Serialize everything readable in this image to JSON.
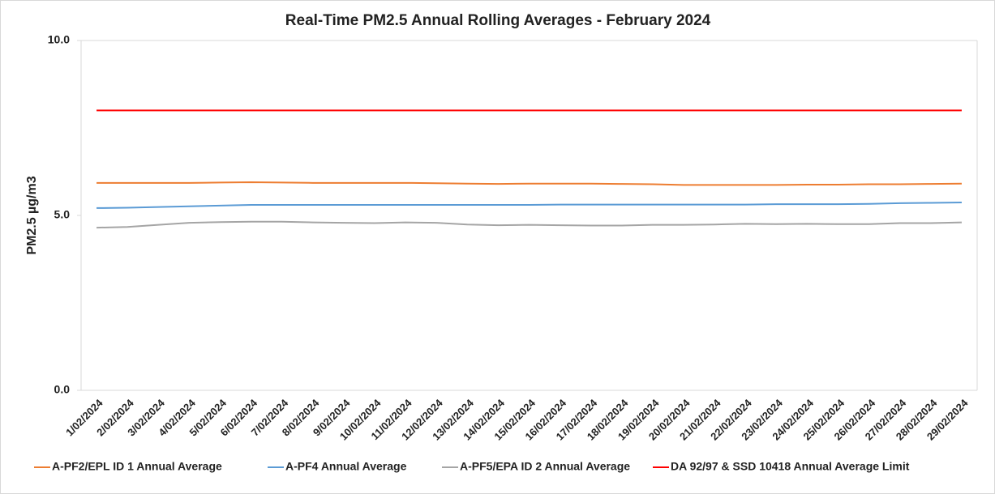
{
  "chart_data": {
    "type": "line",
    "title": "Real-Time PM2.5 Annual Rolling Averages - February 2024",
    "y_label": "PM2.5 µg/m3",
    "categories": [
      "1/02/2024",
      "2/02/2024",
      "3/02/2024",
      "4/02/2024",
      "5/02/2024",
      "6/02/2024",
      "7/02/2024",
      "8/02/2024",
      "9/02/2024",
      "10/02/2024",
      "11/02/2024",
      "12/02/2024",
      "13/02/2024",
      "14/02/2024",
      "15/02/2024",
      "16/02/2024",
      "17/02/2024",
      "18/02/2024",
      "19/02/2024",
      "20/02/2024",
      "21/02/2024",
      "22/02/2024",
      "23/02/2024",
      "24/02/2024",
      "25/02/2024",
      "26/02/2024",
      "27/02/2024",
      "28/02/2024",
      "29/02/2024"
    ],
    "series": [
      {
        "name": "A-PF2/EPL ID 1 Annual Average",
        "color": "#ed7d31",
        "values": [
          5.93,
          5.93,
          5.93,
          5.93,
          5.94,
          5.95,
          5.94,
          5.93,
          5.93,
          5.93,
          5.93,
          5.92,
          5.91,
          5.9,
          5.91,
          5.91,
          5.91,
          5.9,
          5.89,
          5.87,
          5.87,
          5.87,
          5.87,
          5.88,
          5.88,
          5.89,
          5.89,
          5.9,
          5.91
        ]
      },
      {
        "name": "A-PF4 Annual Average",
        "color": "#5b9bd5",
        "values": [
          5.21,
          5.22,
          5.24,
          5.26,
          5.28,
          5.3,
          5.3,
          5.3,
          5.3,
          5.3,
          5.3,
          5.3,
          5.3,
          5.3,
          5.3,
          5.31,
          5.31,
          5.31,
          5.31,
          5.31,
          5.31,
          5.31,
          5.32,
          5.32,
          5.32,
          5.33,
          5.35,
          5.36,
          5.37
        ]
      },
      {
        "name": "A-PF5/EPA ID 2 Annual Average",
        "color": "#a5a5a5",
        "values": [
          4.65,
          4.67,
          4.73,
          4.79,
          4.81,
          4.82,
          4.82,
          4.8,
          4.79,
          4.78,
          4.8,
          4.79,
          4.74,
          4.72,
          4.73,
          4.72,
          4.71,
          4.71,
          4.73,
          4.73,
          4.74,
          4.76,
          4.75,
          4.76,
          4.75,
          4.75,
          4.78,
          4.78,
          4.8
        ]
      },
      {
        "name": "DA 92/97 & SSD 10418 Annual Average Limit",
        "color": "#ff0000",
        "values": [
          8,
          8,
          8,
          8,
          8,
          8,
          8,
          8,
          8,
          8,
          8,
          8,
          8,
          8,
          8,
          8,
          8,
          8,
          8,
          8,
          8,
          8,
          8,
          8,
          8,
          8,
          8,
          8,
          8
        ]
      }
    ],
    "ylim": [
      0,
      10
    ],
    "yticks": [
      {
        "value": 0,
        "label": "0.0"
      },
      {
        "value": 5,
        "label": "5.0"
      },
      {
        "value": 10,
        "label": "10.0"
      }
    ],
    "grid": false,
    "legend": "bottom"
  }
}
